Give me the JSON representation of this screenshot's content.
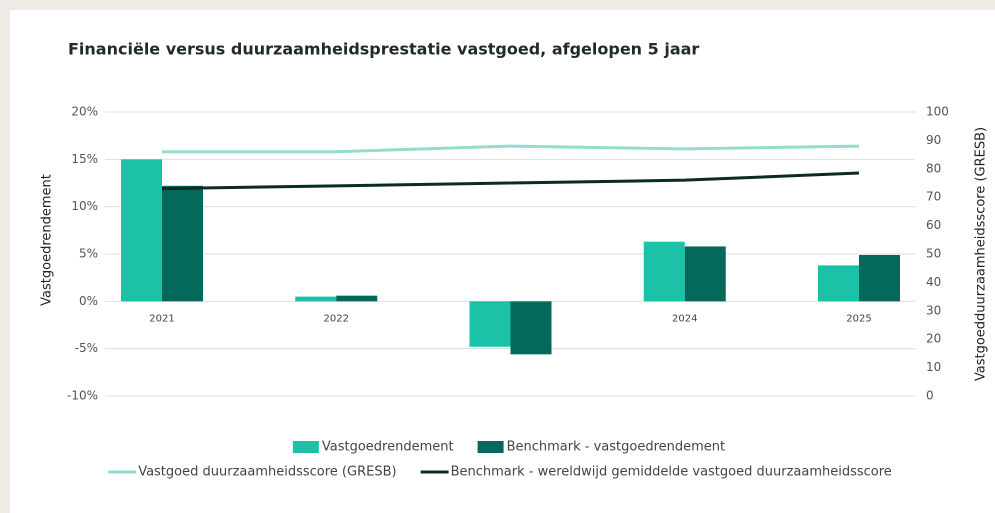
{
  "chart_data": {
    "type": "combo",
    "title": "Financiële versus duurzaamheidsprestatie vastgoed, afgelopen 5 jaar",
    "ylabel": "Vastgoedrendement",
    "y2label": "Vastgoedduurzaamheidsscore (GRESB)",
    "categories": [
      "2021",
      "2022",
      "2023",
      "2024",
      "2025"
    ],
    "series": [
      {
        "name": "Vastgoedrendement",
        "type": "bar",
        "color": "#1bc2a7",
        "values": [
          15.0,
          0.5,
          -4.8,
          6.3,
          3.8
        ]
      },
      {
        "name": "Benchmark - vastgoedrendement",
        "type": "bar",
        "color": "#04695a",
        "values": [
          12.2,
          0.6,
          -5.6,
          5.8,
          4.9
        ]
      },
      {
        "name": "Vastgoed duurzaamheidsscore (GRESB)",
        "type": "line",
        "axis": "y2",
        "color": "#93ddd0",
        "values": [
          86,
          86,
          88,
          87,
          88
        ]
      },
      {
        "name": "Benchmark - wereldwijd gemiddelde vastgoed duurzaamheidsscore",
        "type": "line",
        "axis": "y2",
        "color": "#0c2b24",
        "values": [
          73,
          74,
          75,
          76,
          78.5
        ]
      }
    ],
    "ylim": [
      -10,
      20
    ],
    "yticks": [
      {
        "value": -10,
        "label": "-10%"
      },
      {
        "value": -5,
        "label": "-5%"
      },
      {
        "value": 0,
        "label": "0%"
      },
      {
        "value": 5,
        "label": "5%"
      },
      {
        "value": 10,
        "label": "10%"
      },
      {
        "value": 15,
        "label": "15%"
      },
      {
        "value": 20,
        "label": "20%"
      }
    ],
    "y2lim": [
      0,
      100
    ],
    "y2ticks": [
      0,
      10,
      20,
      30,
      40,
      50,
      60,
      70,
      80,
      90,
      100
    ],
    "grid": true
  }
}
